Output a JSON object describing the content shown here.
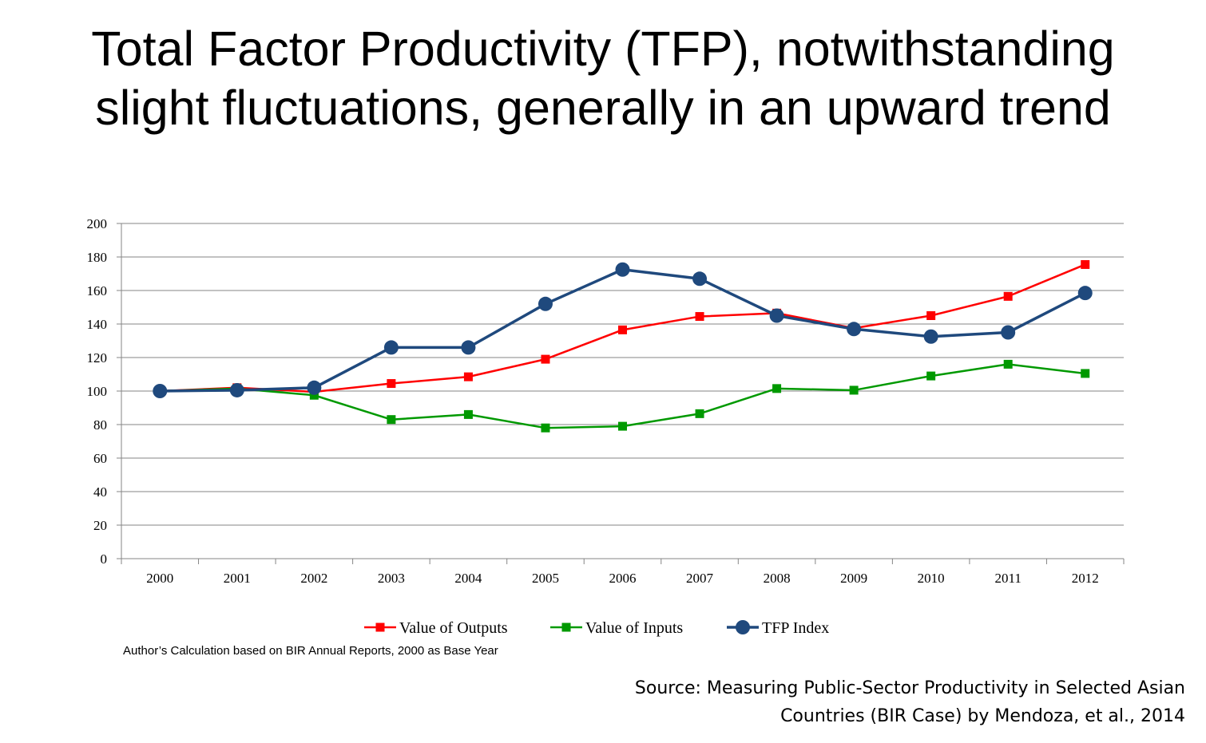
{
  "slide": {
    "title_line1": "Total Factor Productivity (TFP), notwithstanding",
    "title_line2": "slight fluctuations, generally in an upward trend",
    "footnote": "Author’s Calculation based on BIR Annual Reports, 2000 as Base Year",
    "source_line1": "Source: Measuring Public-Sector Productivity in Selected Asian",
    "source_line2": "Countries (BIR Case) by Mendoza, et al., 2014"
  },
  "chart_data": {
    "type": "line",
    "title": "",
    "xlabel": "",
    "ylabel": "",
    "categories": [
      "2000",
      "2001",
      "2002",
      "2003",
      "2004",
      "2005",
      "2006",
      "2007",
      "2008",
      "2009",
      "2010",
      "2011",
      "2012"
    ],
    "ylim": [
      0,
      200
    ],
    "yticks": [
      0,
      20,
      40,
      60,
      80,
      100,
      120,
      140,
      160,
      180,
      200
    ],
    "grid": true,
    "legend_position": "bottom",
    "series": [
      {
        "name": "Value of Outputs",
        "color": "#ff0000",
        "marker": "square",
        "values": [
          100,
          102,
          99.5,
          104.5,
          108.5,
          119,
          136.5,
          144.5,
          146.5,
          137.5,
          145,
          156.5,
          175.5
        ]
      },
      {
        "name": "Value of Inputs",
        "color": "#009900",
        "marker": "square",
        "values": [
          100,
          101.5,
          97.5,
          83,
          86,
          78,
          79,
          86.5,
          101.5,
          100.5,
          109,
          116,
          110.5
        ]
      },
      {
        "name": "TFP Index",
        "color": "#1f497d",
        "marker": "circle",
        "values": [
          100,
          100.5,
          102,
          126,
          126,
          152,
          172.5,
          167,
          145,
          137,
          132.5,
          135,
          158.5
        ]
      }
    ]
  }
}
